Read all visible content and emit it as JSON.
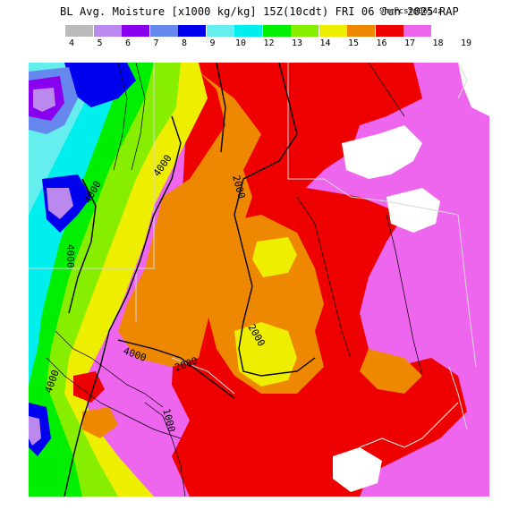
{
  "header": {
    "title": "BL Avg. Moisture [x1000 kg/kg] 15Z(10cdt) FRI 06 Jun 2025",
    "forecast_info": "9hrFcst@0654z",
    "model": "RAP"
  },
  "legend": {
    "levels": [
      {
        "label": "4",
        "color": "#bbbbbb"
      },
      {
        "label": "5",
        "color": "#bb88ee"
      },
      {
        "label": "6",
        "color": "#8800ee"
      },
      {
        "label": "7",
        "color": "#6688ee"
      },
      {
        "label": "8",
        "color": "#0000ee"
      },
      {
        "label": "9",
        "color": "#66eeee"
      },
      {
        "label": "10",
        "color": "#00eeee"
      },
      {
        "label": "12",
        "color": "#00ee00"
      },
      {
        "label": "13",
        "color": "#88ee00"
      },
      {
        "label": "14",
        "color": "#eeee00"
      },
      {
        "label": "15",
        "color": "#ee8800"
      },
      {
        "label": "16",
        "color": "#ee0000"
      },
      {
        "label": "17",
        "color": "#ee66ee"
      },
      {
        "label": "18",
        "color": ""
      },
      {
        "label": "19",
        "color": ""
      }
    ]
  },
  "map": {
    "contour_labels": [
      {
        "text": "4000"
      },
      {
        "text": "4000"
      },
      {
        "text": "4000"
      },
      {
        "text": "4000"
      },
      {
        "text": "2000"
      },
      {
        "text": "2000"
      },
      {
        "text": "2000"
      },
      {
        "text": "4000"
      },
      {
        "text": "1000"
      }
    ]
  }
}
